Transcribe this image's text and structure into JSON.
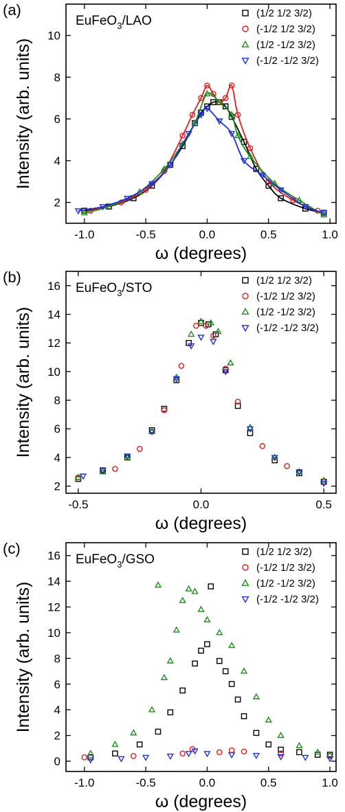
{
  "chart_data": [
    {
      "type": "scatter",
      "panel_label": "(a)",
      "title_parts": [
        "EuFeO",
        "3",
        "/LAO"
      ],
      "xlabel": "ω (degrees)",
      "ylabel": "Intensity (arb. units)",
      "xlim": [
        -1.15,
        1.05
      ],
      "ylim": [
        1.0,
        11.5
      ],
      "xticks": [
        -1.0,
        -0.5,
        0.0,
        0.5,
        1.0
      ],
      "xtick_labels": [
        "-1.0",
        "-0.5",
        "0.0",
        "0.5",
        "1.0"
      ],
      "yticks": [
        2,
        4,
        6,
        8,
        10
      ],
      "ytick_labels": [
        "2",
        "4",
        "6",
        "8",
        "10"
      ],
      "legend_position": "top-right",
      "has_fit_lines": true,
      "series": [
        {
          "name": "(1/2 1/2 3/2)",
          "marker": "square",
          "color": "#000000",
          "x": [
            -1.0,
            -0.8,
            -0.6,
            -0.45,
            -0.3,
            -0.2,
            -0.1,
            -0.05,
            0.0,
            0.05,
            0.1,
            0.15,
            0.2,
            0.3,
            0.4,
            0.5,
            0.6,
            0.8,
            0.95
          ],
          "y": [
            1.6,
            1.8,
            2.2,
            2.8,
            3.8,
            4.7,
            5.8,
            6.3,
            6.6,
            6.8,
            6.8,
            6.6,
            6.1,
            4.9,
            3.6,
            2.8,
            2.2,
            1.7,
            1.5
          ]
        },
        {
          "name": "(-1/2 1/2 3/2)",
          "marker": "circle",
          "color": "#e41a1c",
          "x": [
            -0.95,
            -0.7,
            -0.5,
            -0.35,
            -0.2,
            -0.12,
            -0.05,
            0.0,
            0.05,
            0.1,
            0.15,
            0.2,
            0.25,
            0.35,
            0.5,
            0.7,
            0.9
          ],
          "y": [
            1.6,
            2.0,
            2.6,
            3.5,
            5.2,
            6.2,
            7.0,
            7.6,
            7.2,
            6.8,
            7.0,
            7.6,
            6.2,
            4.6,
            3.0,
            2.1,
            1.6
          ]
        },
        {
          "name": "(1/2 -1/2 3/2)",
          "marker": "triangle-up",
          "color": "#1f8c1f",
          "x": [
            -1.0,
            -0.8,
            -0.55,
            -0.35,
            -0.2,
            -0.1,
            0.0,
            0.1,
            0.2,
            0.25,
            0.35,
            0.55,
            0.75,
            0.95
          ],
          "y": [
            1.5,
            1.8,
            2.5,
            3.6,
            4.8,
            5.8,
            7.2,
            6.8,
            6.2,
            5.2,
            4.2,
            2.9,
            2.1,
            1.4
          ]
        },
        {
          "name": "(-1/2 -1/2 3/2)",
          "marker": "triangle-down",
          "color": "#1f2fd9",
          "x": [
            -1.05,
            -0.85,
            -0.65,
            -0.45,
            -0.3,
            -0.15,
            -0.05,
            0.0,
            0.1,
            0.2,
            0.3,
            0.45,
            0.6,
            0.8,
            0.95
          ],
          "y": [
            1.6,
            1.8,
            2.2,
            2.9,
            3.8,
            5.3,
            6.2,
            6.5,
            5.9,
            5.3,
            4.0,
            3.3,
            2.6,
            1.8,
            1.5
          ]
        }
      ]
    },
    {
      "type": "scatter",
      "panel_label": "(b)",
      "title_parts": [
        "EuFeO",
        "3",
        "/STO"
      ],
      "xlabel": "ω (degrees)",
      "ylabel": "Intensity (arb. units)",
      "xlim": [
        -0.55,
        0.55
      ],
      "ylim": [
        1.5,
        17.0
      ],
      "xticks": [
        -0.5,
        0.0,
        0.5
      ],
      "xtick_labels": [
        "-0.5",
        "0.0",
        "0.5"
      ],
      "yticks": [
        2,
        4,
        6,
        8,
        10,
        12,
        14,
        16
      ],
      "ytick_labels": [
        "2",
        "4",
        "6",
        "8",
        "10",
        "12",
        "14",
        "16"
      ],
      "legend_position": "top-right",
      "has_fit_lines": false,
      "series": [
        {
          "name": "(1/2 1/2 3/2)",
          "marker": "square",
          "color": "#000000",
          "x": [
            -0.5,
            -0.4,
            -0.3,
            -0.2,
            -0.15,
            -0.1,
            -0.05,
            0.0,
            0.03,
            0.06,
            0.1,
            0.15,
            0.2,
            0.3,
            0.4,
            0.5
          ],
          "y": [
            2.5,
            3.1,
            4.0,
            5.9,
            7.4,
            9.4,
            12.0,
            13.4,
            13.3,
            12.6,
            10.1,
            7.6,
            5.7,
            3.8,
            2.9,
            2.3
          ]
        },
        {
          "name": "(-1/2 1/2 3/2)",
          "marker": "circle",
          "color": "#e41a1c",
          "x": [
            -0.5,
            -0.35,
            -0.25,
            -0.15,
            -0.08,
            -0.02,
            0.02,
            0.05,
            0.1,
            0.15,
            0.25,
            0.35,
            0.5
          ],
          "y": [
            2.6,
            3.2,
            4.6,
            7.3,
            10.4,
            13.2,
            13.2,
            12.5,
            10.2,
            7.9,
            4.8,
            3.4,
            2.3
          ]
        },
        {
          "name": "(1/2 -1/2 3/2)",
          "marker": "triangle-up",
          "color": "#1f8c1f",
          "x": [
            -0.5,
            -0.4,
            -0.3,
            -0.2,
            -0.1,
            -0.04,
            0.0,
            0.04,
            0.07,
            0.12,
            0.2,
            0.3,
            0.4,
            0.5
          ],
          "y": [
            2.6,
            3.0,
            4.0,
            5.8,
            9.6,
            12.6,
            13.5,
            13.4,
            12.8,
            10.6,
            6.1,
            4.0,
            3.0,
            2.4
          ]
        },
        {
          "name": "(-1/2 -1/2 3/2)",
          "marker": "triangle-down",
          "color": "#1f2fd9",
          "x": [
            -0.48,
            -0.4,
            -0.3,
            -0.2,
            -0.1,
            -0.04,
            0.0,
            0.05,
            0.1,
            0.2,
            0.3,
            0.4,
            0.5
          ],
          "y": [
            2.7,
            3.1,
            4.1,
            5.8,
            9.5,
            11.8,
            12.4,
            12.1,
            10.0,
            6.0,
            4.0,
            3.0,
            2.2
          ]
        }
      ]
    },
    {
      "type": "scatter",
      "panel_label": "(c)",
      "title_parts": [
        "EuFeO",
        "3",
        "/GSO"
      ],
      "xlabel": "ω (degrees)",
      "ylabel": "Intensity (arb. units)",
      "xlim": [
        -1.15,
        1.05
      ],
      "ylim": [
        -0.8,
        17.0
      ],
      "xticks": [
        -1.0,
        -0.5,
        0.0,
        0.5,
        1.0
      ],
      "xtick_labels": [
        "-1.0",
        "-0.5",
        "0.0",
        "0.5",
        "1.0"
      ],
      "yticks": [
        0,
        2,
        4,
        6,
        8,
        10,
        12,
        14,
        16
      ],
      "ytick_labels": [
        "0",
        "2",
        "4",
        "6",
        "8",
        "10",
        "12",
        "14",
        "16"
      ],
      "legend_position": "top-right",
      "has_fit_lines": false,
      "series": [
        {
          "name": "(1/2 1/2 3/2)",
          "marker": "square",
          "color": "#000000",
          "x": [
            -0.95,
            -0.75,
            -0.55,
            -0.4,
            -0.3,
            -0.2,
            -0.1,
            -0.05,
            0.0,
            0.03,
            0.1,
            0.15,
            0.2,
            0.25,
            0.3,
            0.4,
            0.5,
            0.6,
            0.75,
            0.9,
            1.0
          ],
          "y": [
            0.3,
            0.6,
            1.3,
            2.3,
            3.8,
            5.5,
            7.6,
            8.6,
            9.1,
            13.6,
            7.8,
            7.0,
            6.0,
            4.8,
            3.5,
            2.2,
            1.3,
            0.9,
            0.7,
            0.5,
            0.5
          ]
        },
        {
          "name": "(-1/2 1/2 3/2)",
          "marker": "circle",
          "color": "#e41a1c",
          "x": [
            -1.0,
            -0.6,
            -0.2,
            -0.12,
            0.1,
            0.2,
            0.3,
            0.6,
            1.0
          ],
          "y": [
            0.3,
            0.4,
            0.6,
            0.95,
            0.7,
            0.85,
            0.75,
            0.6,
            0.4
          ]
        },
        {
          "name": "(1/2 -1/2 3/2)",
          "marker": "triangle-up",
          "color": "#1f8c1f",
          "x": [
            -0.95,
            -0.75,
            -0.6,
            -0.45,
            -0.4,
            -0.35,
            -0.3,
            -0.25,
            -0.2,
            -0.15,
            -0.1,
            -0.05,
            0.0,
            0.1,
            0.2,
            0.3,
            0.4,
            0.5,
            0.6,
            0.75,
            0.9,
            1.0
          ],
          "y": [
            0.6,
            1.3,
            2.2,
            4.0,
            13.7,
            6.5,
            7.8,
            10.2,
            12.5,
            13.4,
            13.2,
            11.8,
            11.0,
            10.0,
            9.0,
            7.0,
            5.0,
            3.2,
            2.0,
            1.2,
            0.7,
            0.5
          ]
        },
        {
          "name": "(-1/2 -1/2 3/2)",
          "marker": "triangle-down",
          "color": "#1f2fd9",
          "x": [
            -0.95,
            -0.7,
            -0.5,
            -0.3,
            -0.15,
            -0.1,
            0.0,
            0.2,
            0.4,
            0.6,
            0.8,
            1.0
          ],
          "y": [
            0.1,
            0.2,
            0.3,
            0.4,
            0.6,
            0.8,
            0.6,
            0.5,
            0.45,
            0.35,
            0.3,
            0.2
          ]
        }
      ]
    }
  ]
}
